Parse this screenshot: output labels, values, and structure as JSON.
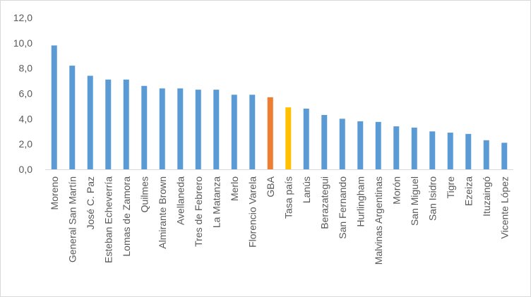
{
  "chart_data": {
    "type": "bar",
    "title": "",
    "xlabel": "",
    "ylabel": "",
    "ylim": [
      0,
      12
    ],
    "yticks": [
      "0,0",
      "2,0",
      "4,0",
      "6,0",
      "8,0",
      "10,0",
      "12,0"
    ],
    "grid": false,
    "legend": "none",
    "colors": {
      "default": "#5b9bd5",
      "GBA": "#ed7d31",
      "Tasa país": "#ffc000"
    },
    "categories": [
      "Moreno",
      "General San Martín",
      "José C. Paz",
      "Esteban Echeverría",
      "Lomas de Zamora",
      "Quilmes",
      "Almirante Brown",
      "Avellaneda",
      "Tres de Febrero",
      "La Matanza",
      "Merlo",
      "Florencio Varela",
      "GBA",
      "Tasa país",
      "Lanús",
      "Berazategui",
      "San Fernando",
      "Hurlingham",
      "Malvinas Argentinas",
      "Morón",
      "San Miguel",
      "San Isidro",
      "Tigre",
      "Ezeiza",
      "Ituzaingó",
      "Vicente López"
    ],
    "values": [
      9.8,
      8.2,
      7.4,
      7.1,
      7.1,
      6.6,
      6.4,
      6.4,
      6.3,
      6.3,
      5.9,
      5.9,
      5.7,
      4.9,
      4.8,
      4.3,
      4.0,
      3.8,
      3.75,
      3.4,
      3.3,
      3.0,
      2.9,
      2.8,
      2.3,
      2.1
    ]
  }
}
